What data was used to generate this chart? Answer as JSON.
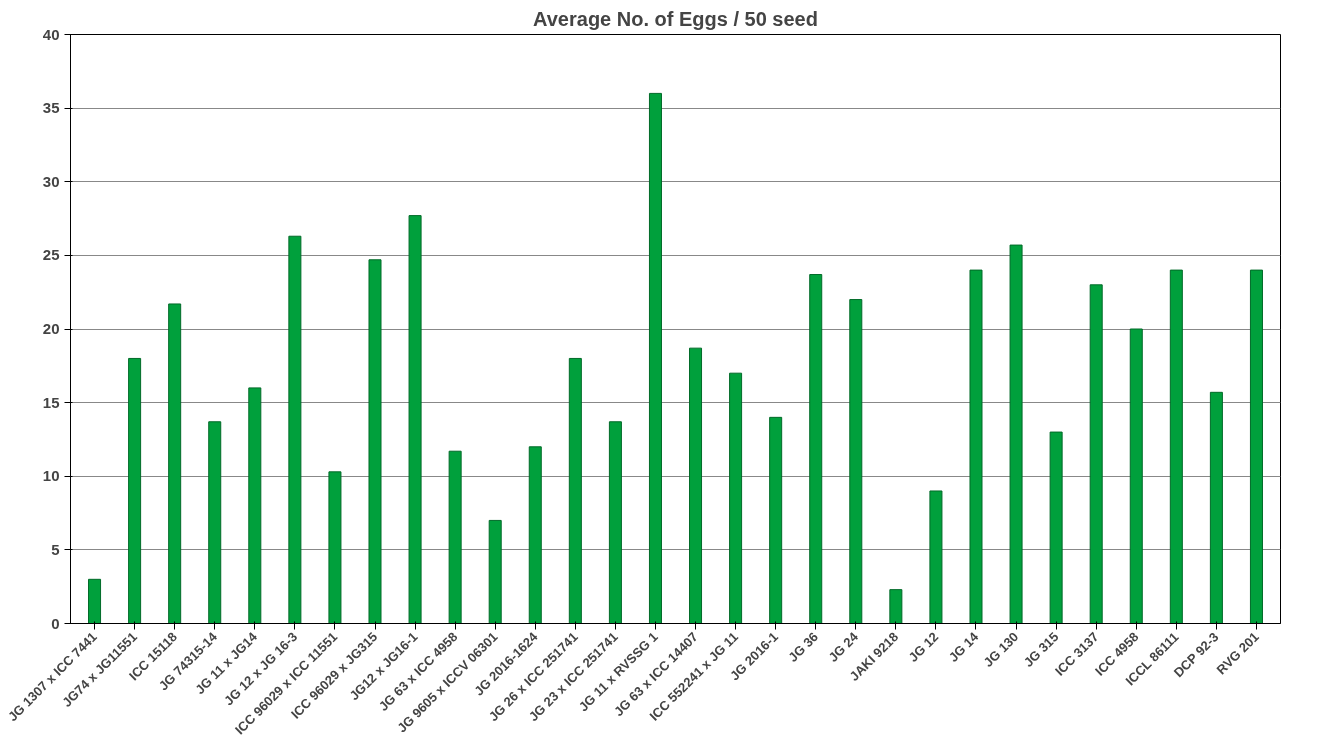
{
  "chart_data": {
    "type": "bar",
    "title": "Average No. of Eggs / 50 seed",
    "categories": [
      "JG 1307 x ICC 7441",
      "JG74 x JG11551",
      "ICC 15118",
      "JG 74315-14",
      "JG 11 x JG14",
      "JG 12 x JG 16-3",
      "ICC 96029 x ICC 11551",
      "ICC 96029 x JG315",
      "JG12 x JG16-1",
      "JG 63 x ICC 4958",
      "JG 9605 x ICCV 06301",
      "JG 2016-1624",
      "JG 26 x ICC 251741",
      "JG 23 x ICC 251741",
      "JG 11 x RVSSG 1",
      "JG 63 x ICC 14407",
      "ICC 552241 x JG 11",
      "JG 2016-1",
      "JG 36",
      "JG 24",
      "JAKI 9218",
      "JG 12",
      "JG 14",
      "JG 130",
      "JG 315",
      "ICC 3137",
      "ICC 4958",
      "ICCL 86111",
      "DCP 92-3",
      "RVG 201"
    ],
    "values": [
      3,
      18,
      21.7,
      13.7,
      16,
      26.3,
      10.3,
      24.7,
      27.7,
      11.7,
      7,
      12,
      18,
      13.7,
      36,
      18.7,
      17,
      14,
      23.7,
      22,
      2.3,
      9,
      24,
      25.7,
      13,
      23,
      20,
      24,
      15.7,
      24
    ],
    "color": "#00a03c",
    "ylim": [
      0,
      40
    ],
    "yticks": [
      0,
      5,
      10,
      15,
      20,
      25,
      30,
      35,
      40
    ],
    "grid": "y"
  }
}
